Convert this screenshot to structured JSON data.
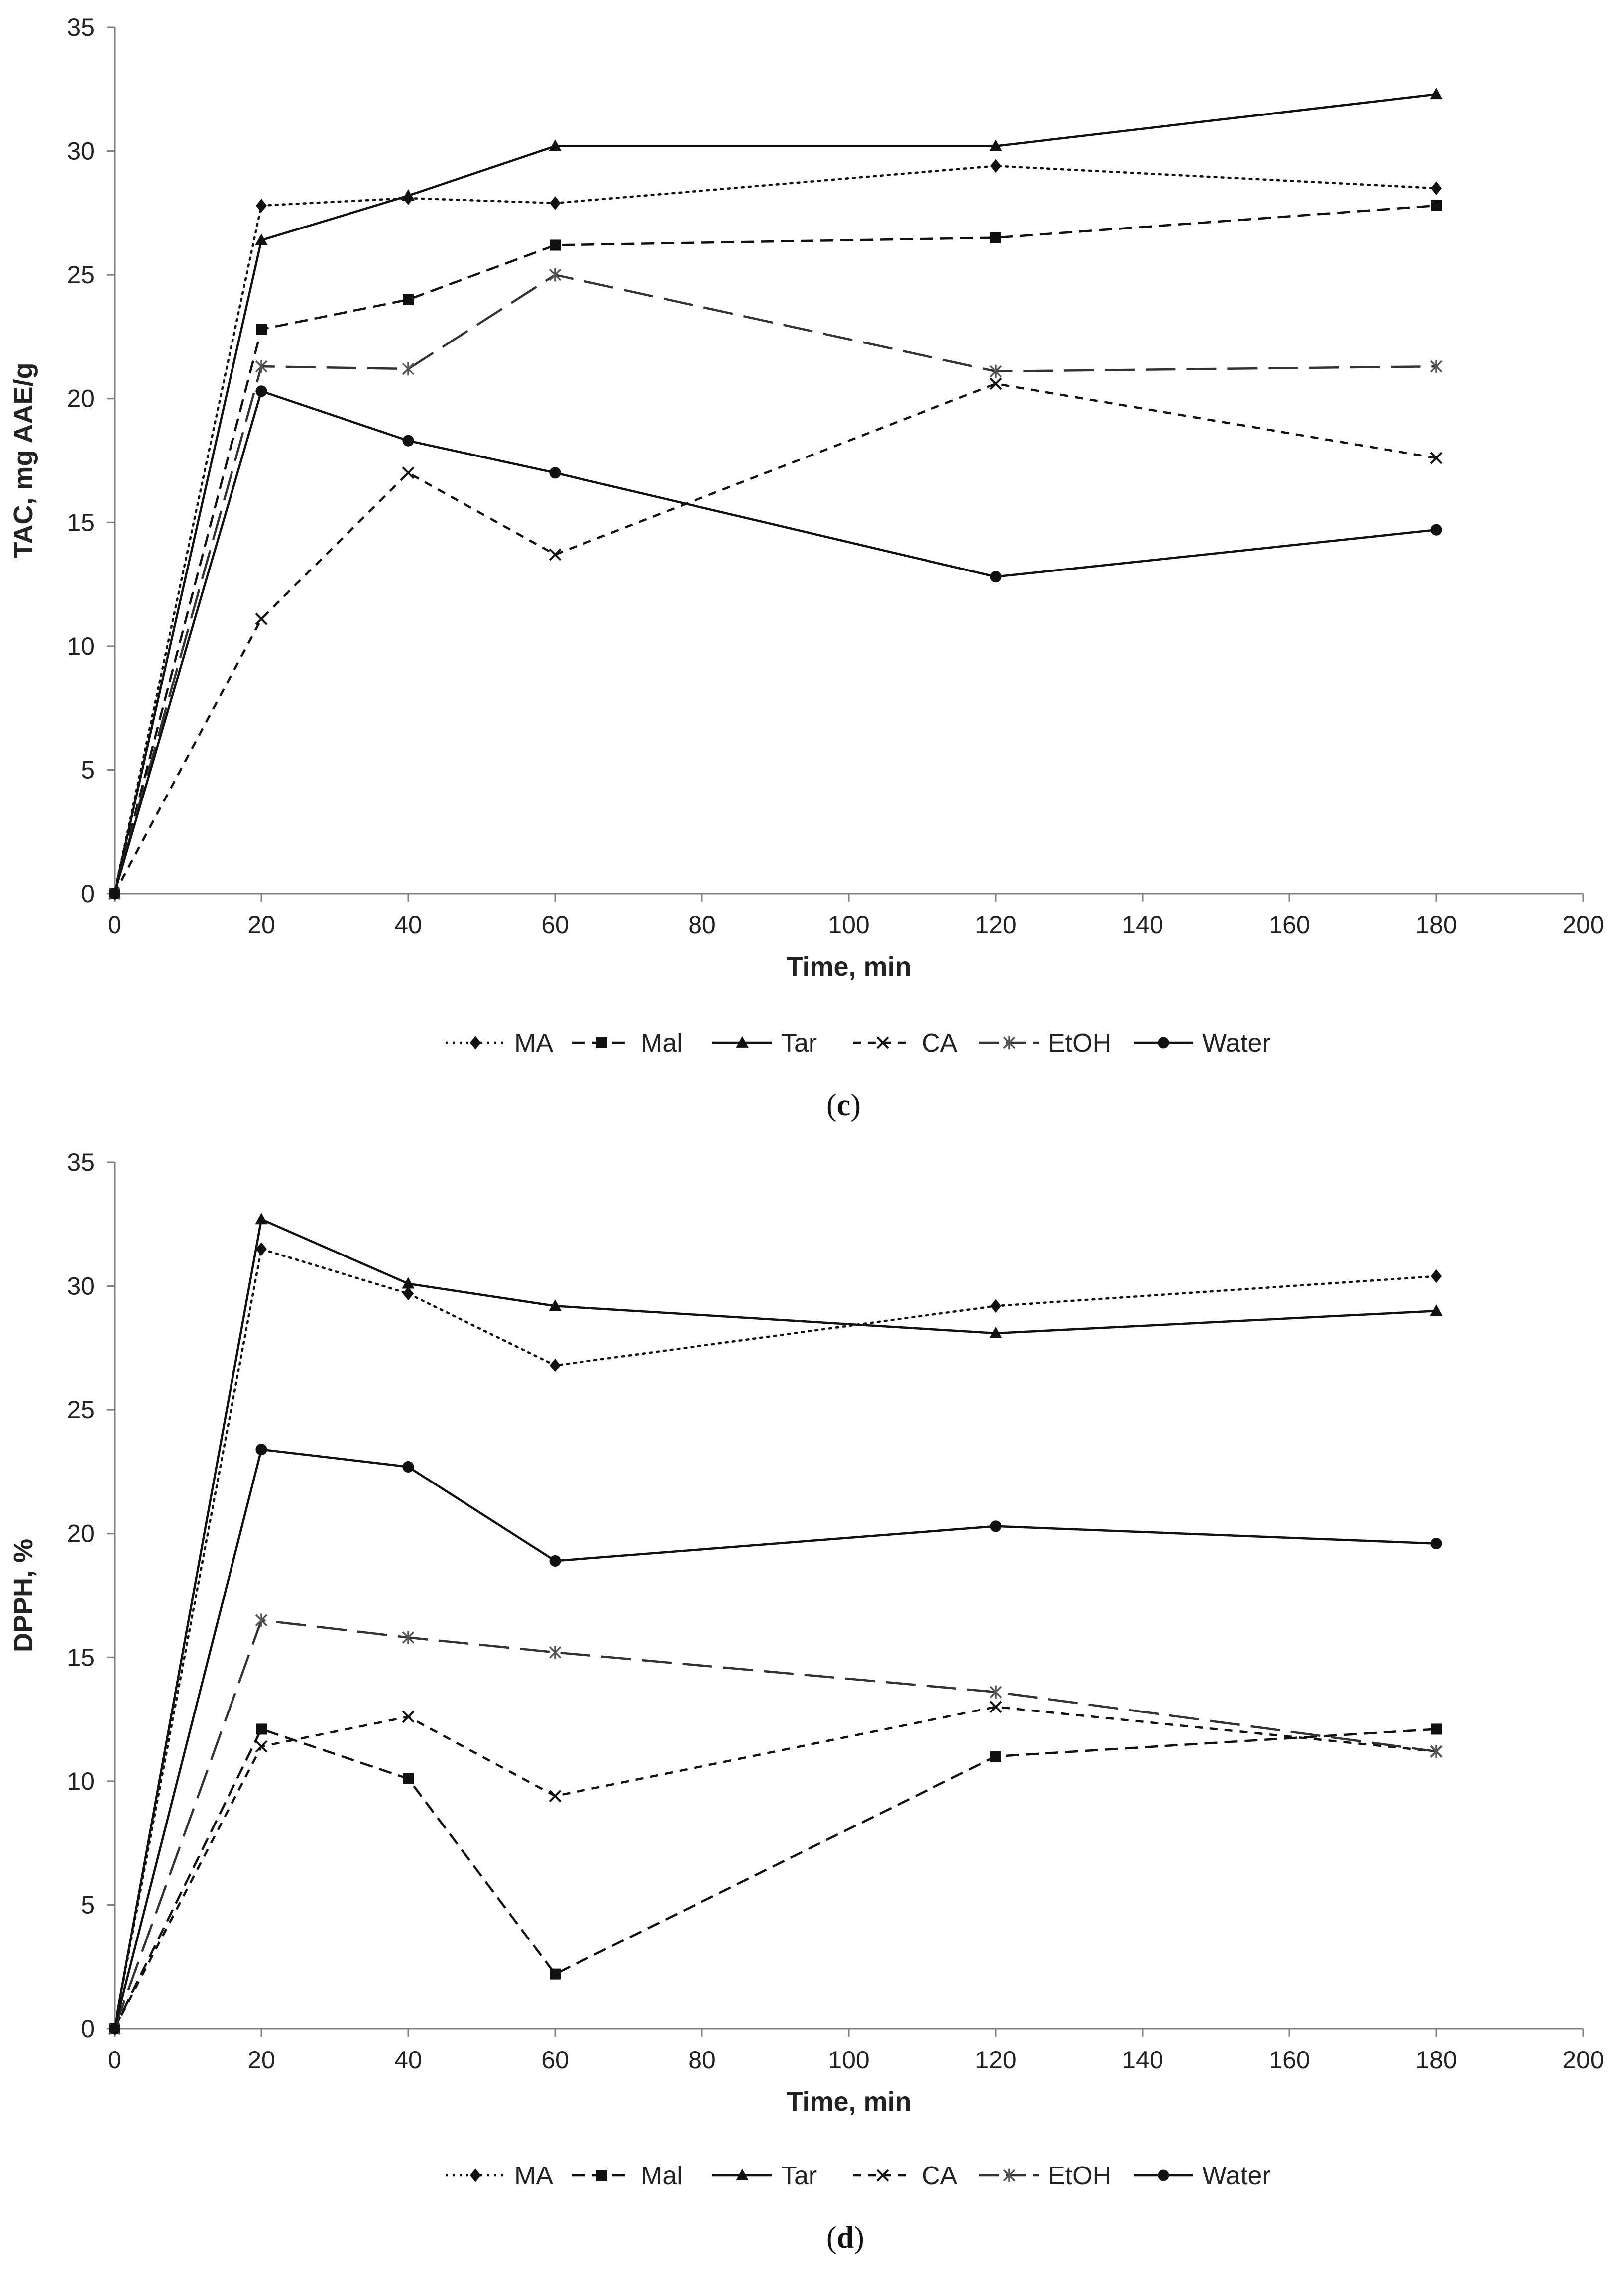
{
  "chart_data": [
    {
      "type": "line",
      "panel_label": "c",
      "xlabel": "Time, min",
      "ylabel": "TAC, mg AAE/g",
      "xlim": [
        0,
        200
      ],
      "ylim": [
        0,
        35
      ],
      "xticks": [
        0,
        20,
        40,
        60,
        80,
        100,
        120,
        140,
        160,
        180,
        200
      ],
      "yticks": [
        0,
        5,
        10,
        15,
        20,
        25,
        30,
        35
      ],
      "grid": false,
      "legend": "bottom",
      "x": [
        0,
        20,
        40,
        60,
        120,
        180
      ],
      "series": [
        {
          "name": "MA",
          "values": [
            0,
            27.8,
            28.1,
            27.9,
            29.4,
            28.5
          ],
          "marker": "diamond",
          "dash": "dotted"
        },
        {
          "name": "Mal",
          "values": [
            0,
            22.8,
            24.0,
            26.2,
            26.5,
            27.8
          ],
          "marker": "square",
          "dash": "dashed"
        },
        {
          "name": "Tar",
          "values": [
            0,
            26.4,
            28.2,
            30.2,
            30.2,
            32.3
          ],
          "marker": "triangle",
          "dash": "solid"
        },
        {
          "name": "CA",
          "values": [
            0,
            11.1,
            17.0,
            13.7,
            20.6,
            17.6
          ],
          "marker": "x",
          "dash": "short-dash"
        },
        {
          "name": "EtOH",
          "values": [
            0,
            21.3,
            21.2,
            25.0,
            21.1,
            21.3
          ],
          "marker": "star",
          "dash": "long-dash"
        },
        {
          "name": "Water",
          "values": [
            0,
            20.3,
            18.3,
            17.0,
            12.8,
            14.7
          ],
          "marker": "circle",
          "dash": "solid"
        }
      ]
    },
    {
      "type": "line",
      "panel_label": "d",
      "xlabel": "Time, min",
      "ylabel": "DPPH, %",
      "xlim": [
        0,
        200
      ],
      "ylim": [
        0,
        35
      ],
      "xticks": [
        0,
        20,
        40,
        60,
        80,
        100,
        120,
        140,
        160,
        180,
        200
      ],
      "yticks": [
        0,
        5,
        10,
        15,
        20,
        25,
        30,
        35
      ],
      "grid": false,
      "legend": "bottom",
      "x": [
        0,
        20,
        40,
        60,
        120,
        180
      ],
      "series": [
        {
          "name": "MA",
          "values": [
            0,
            31.5,
            29.7,
            26.8,
            29.2,
            30.4
          ],
          "marker": "diamond",
          "dash": "dotted"
        },
        {
          "name": "Mal",
          "values": [
            0,
            12.1,
            10.1,
            2.2,
            11.0,
            12.1
          ],
          "marker": "square",
          "dash": "dashed"
        },
        {
          "name": "Tar",
          "values": [
            0,
            32.7,
            30.1,
            29.2,
            28.1,
            29.0
          ],
          "marker": "triangle",
          "dash": "solid"
        },
        {
          "name": "CA",
          "values": [
            0,
            11.4,
            12.6,
            9.4,
            13.0,
            11.2
          ],
          "marker": "x",
          "dash": "short-dash"
        },
        {
          "name": "EtOH",
          "values": [
            0,
            16.5,
            15.8,
            15.2,
            13.6,
            11.2
          ],
          "marker": "star",
          "dash": "long-dash"
        },
        {
          "name": "Water",
          "values": [
            0,
            23.4,
            22.7,
            18.9,
            20.3,
            19.6
          ],
          "marker": "circle",
          "dash": "solid"
        }
      ]
    }
  ]
}
